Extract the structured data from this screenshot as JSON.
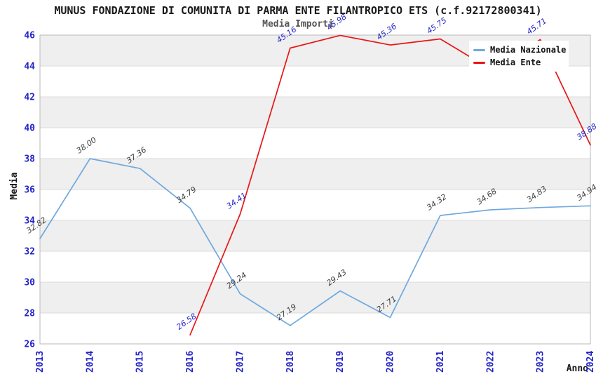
{
  "chart_data": {
    "type": "line",
    "title": "MUNUS FONDAZIONE DI COMUNITA DI PARMA ENTE FILANTROPICO ETS (c.f.92172800341)",
    "subtitle": "Media Importi",
    "xlabel": "Anno",
    "ylabel": "Media",
    "x": [
      2013,
      2014,
      2015,
      2016,
      2017,
      2018,
      2019,
      2020,
      2021,
      2022,
      2023,
      2024
    ],
    "ylim": [
      26,
      46
    ],
    "ytick_step": 2,
    "grid": "horizontal-bands",
    "legend_position": "top-right",
    "series": [
      {
        "name": "Media Nazionale",
        "color": "#6fa9df",
        "label_color": "#3c3c3c",
        "values": [
          32.82,
          38.0,
          37.36,
          34.79,
          29.24,
          27.19,
          29.43,
          27.71,
          34.32,
          34.68,
          34.83,
          34.94
        ],
        "labels": [
          "32.82",
          "38.00",
          "37.36",
          "34.79",
          "29.24",
          "27.19",
          "29.43",
          "27.71",
          "34.32",
          "34.68",
          "34.83",
          "34.94"
        ]
      },
      {
        "name": "Media Ente",
        "color": "#e91616",
        "label_color": "#2323c8",
        "values": [
          null,
          null,
          null,
          26.58,
          34.41,
          45.16,
          45.98,
          45.36,
          45.75,
          43.8,
          45.71,
          38.88
        ],
        "labels": [
          null,
          null,
          null,
          "26.58",
          "34.41",
          "45.16",
          "45.98",
          "45.36",
          "45.75",
          null,
          "45.71",
          "38.88"
        ],
        "note": "2022 point hidden behind legend box; value estimated from line slope"
      }
    ]
  },
  "colors": {
    "tick_label": "#2323c8",
    "band_gray": "#efefef",
    "grid_line": "#dbdbdb",
    "plot_border": "#b9b9b9",
    "title_text": "#1a1a1a",
    "subtitle_text": "#555555",
    "legend_bg": "#ffffff"
  }
}
